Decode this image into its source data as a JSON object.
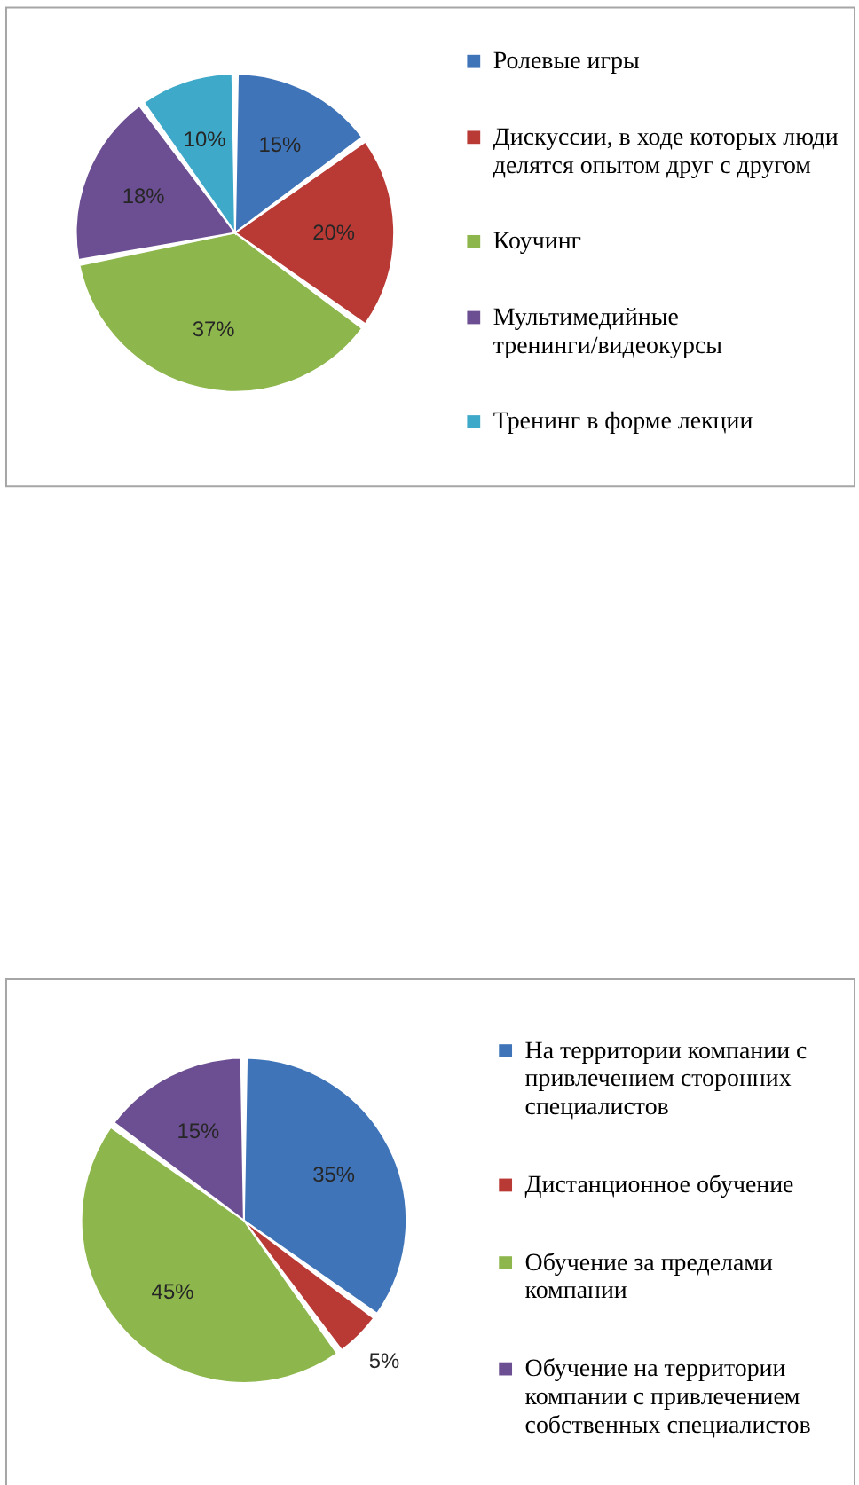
{
  "chart_data": [
    {
      "type": "pie",
      "categories": [
        "Ролевые игры",
        "Дискуссии, в ходе которых люди делятся опытом друг с другом",
        "Коучинг",
        "Мультимедийные тренинги/видеокурсы",
        "Тренинг в форме лекции"
      ],
      "values": [
        15,
        20,
        37,
        18,
        10
      ],
      "colors": [
        "#3f74b8",
        "#b93a35",
        "#8db64c",
        "#6c4f92",
        "#3ea9c9"
      ],
      "value_labels": [
        "15%",
        "20%",
        "37%",
        "18%",
        "10%"
      ],
      "legend": "right"
    },
    {
      "type": "pie",
      "categories": [
        "На территории компании с привлечением сторонних специалистов",
        "Дистанционное обучение",
        "Обучение за пределами компании",
        "Обучение на территории компании с привлечением собственных специалистов"
      ],
      "values": [
        35,
        5,
        45,
        15
      ],
      "colors": [
        "#3f74b8",
        "#b93a35",
        "#8db64c",
        "#6c4f92"
      ],
      "value_labels": [
        "35%",
        "5%",
        "45%",
        "15%"
      ],
      "legend": "right"
    }
  ]
}
